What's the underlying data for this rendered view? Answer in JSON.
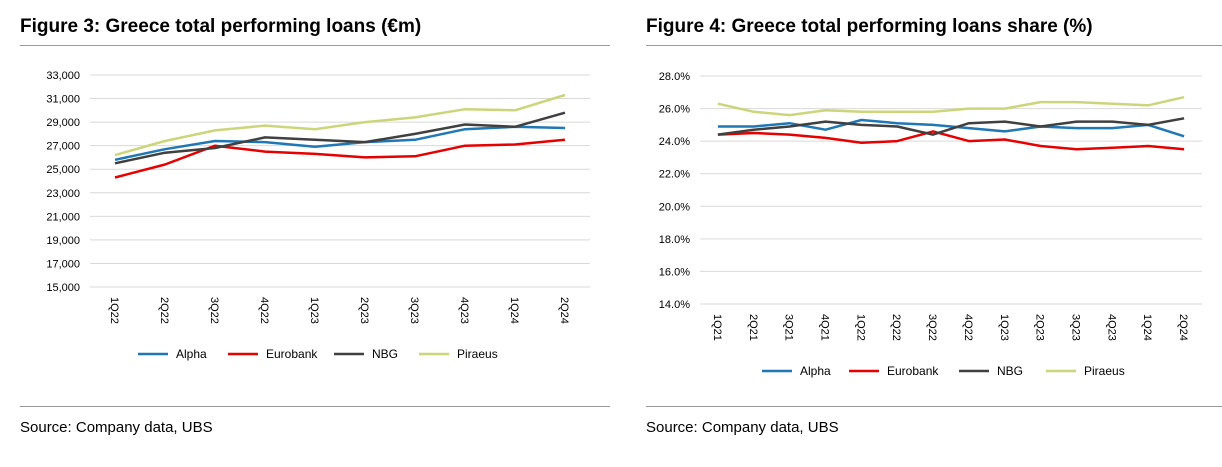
{
  "figures": [
    {
      "title": "Figure 3: Greece total performing loans (€m)",
      "source": "Source: Company data, UBS",
      "chart_data": {
        "type": "line",
        "categories": [
          "1Q22",
          "2Q22",
          "3Q22",
          "4Q22",
          "1Q23",
          "2Q23",
          "3Q23",
          "4Q23",
          "1Q24",
          "2Q24"
        ],
        "ylim": [
          15000,
          33000
        ],
        "yticks": [
          15000,
          17000,
          19000,
          21000,
          23000,
          25000,
          27000,
          29000,
          31000,
          33000
        ],
        "ytick_labels": [
          "15,000",
          "17,000",
          "19,000",
          "21,000",
          "23,000",
          "25,000",
          "27,000",
          "29,000",
          "31,000",
          "33,000"
        ],
        "grid": true,
        "legend_position": "bottom",
        "series": [
          {
            "name": "Alpha",
            "color": "#1f77b4",
            "values": [
              25800,
              26700,
              27400,
              27300,
              26900,
              27300,
              27500,
              28400,
              28600,
              28500
            ]
          },
          {
            "name": "Eurobank",
            "color": "#e60000",
            "values": [
              24300,
              25400,
              27000,
              26500,
              26300,
              26000,
              26100,
              27000,
              27100,
              27500
            ]
          },
          {
            "name": "NBG",
            "color": "#404040",
            "values": [
              25500,
              26400,
              26800,
              27700,
              27500,
              27300,
              28000,
              28800,
              28600,
              29800
            ]
          },
          {
            "name": "Piraeus",
            "color": "#cbd67a",
            "values": [
              26200,
              27400,
              28300,
              28700,
              28400,
              29000,
              29400,
              30100,
              30000,
              31300
            ]
          }
        ]
      }
    },
    {
      "title": "Figure 4: Greece total performing loans share (%)",
      "source": "Source: Company data, UBS",
      "chart_data": {
        "type": "line",
        "categories": [
          "1Q21",
          "2Q21",
          "3Q21",
          "4Q21",
          "1Q22",
          "2Q22",
          "3Q22",
          "4Q22",
          "1Q23",
          "2Q23",
          "3Q23",
          "4Q23",
          "1Q24",
          "2Q24"
        ],
        "ylim": [
          14.0,
          28.0
        ],
        "yticks": [
          14,
          16,
          18,
          20,
          22,
          24,
          26,
          28
        ],
        "ytick_labels": [
          "14.0%",
          "16.0%",
          "18.0%",
          "20.0%",
          "22.0%",
          "24.0%",
          "26.0%",
          "28.0%"
        ],
        "grid": true,
        "legend_position": "bottom",
        "series": [
          {
            "name": "Alpha",
            "color": "#1f77b4",
            "values": [
              24.9,
              24.9,
              25.1,
              24.7,
              25.3,
              25.1,
              25.0,
              24.8,
              24.6,
              24.9,
              24.8,
              24.8,
              25.0,
              24.3
            ]
          },
          {
            "name": "Eurobank",
            "color": "#e60000",
            "values": [
              24.4,
              24.5,
              24.4,
              24.2,
              23.9,
              24.0,
              24.6,
              24.0,
              24.1,
              23.7,
              23.5,
              23.6,
              23.7,
              23.5
            ]
          },
          {
            "name": "NBG",
            "color": "#404040",
            "values": [
              24.4,
              24.7,
              24.9,
              25.2,
              25.0,
              24.9,
              24.4,
              25.1,
              25.2,
              24.9,
              25.2,
              25.2,
              25.0,
              25.4
            ]
          },
          {
            "name": "Piraeus",
            "color": "#cbd67a",
            "values": [
              26.3,
              25.8,
              25.6,
              25.9,
              25.8,
              25.8,
              25.8,
              26.0,
              26.0,
              26.4,
              26.4,
              26.3,
              26.2,
              26.7
            ]
          }
        ]
      }
    }
  ]
}
